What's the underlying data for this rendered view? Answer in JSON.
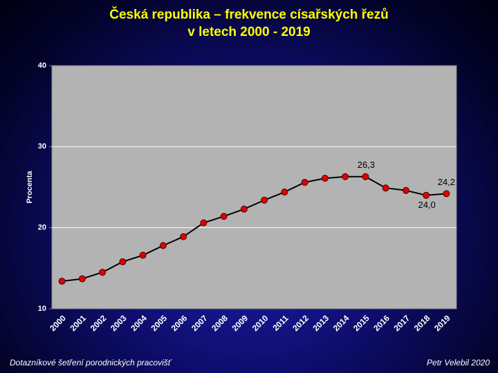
{
  "chart_data": {
    "type": "line",
    "title": "Česká republika – frekvence císařských řezů",
    "subtitle": "v letech 2000 - 2019",
    "y_label": "Procenta",
    "categories": [
      "2000",
      "2001",
      "2002",
      "2003",
      "2004",
      "2005",
      "2006",
      "2007",
      "2008",
      "2009",
      "2010",
      "2011",
      "2012",
      "2013",
      "2014",
      "2015",
      "2016",
      "2017",
      "2018",
      "2019"
    ],
    "values": [
      13.4,
      13.7,
      14.5,
      15.8,
      16.6,
      17.8,
      18.9,
      20.6,
      21.4,
      22.3,
      23.4,
      24.4,
      25.6,
      26.1,
      26.3,
      26.3,
      24.9,
      24.6,
      24.0,
      24.2
    ],
    "value_labels": [
      null,
      null,
      null,
      null,
      null,
      null,
      null,
      null,
      null,
      null,
      null,
      null,
      null,
      null,
      null,
      "26,3",
      null,
      null,
      "24,0",
      "24,2"
    ],
    "color": "#000000",
    "marker_color": "#e00000",
    "ylim": [
      10,
      40
    ],
    "yticks": [
      10,
      20,
      30,
      40
    ],
    "grid": true
  },
  "footer": {
    "left": "Dotazníkové šetření porodnických pracovišť",
    "right": "Petr Velebil 2020"
  }
}
